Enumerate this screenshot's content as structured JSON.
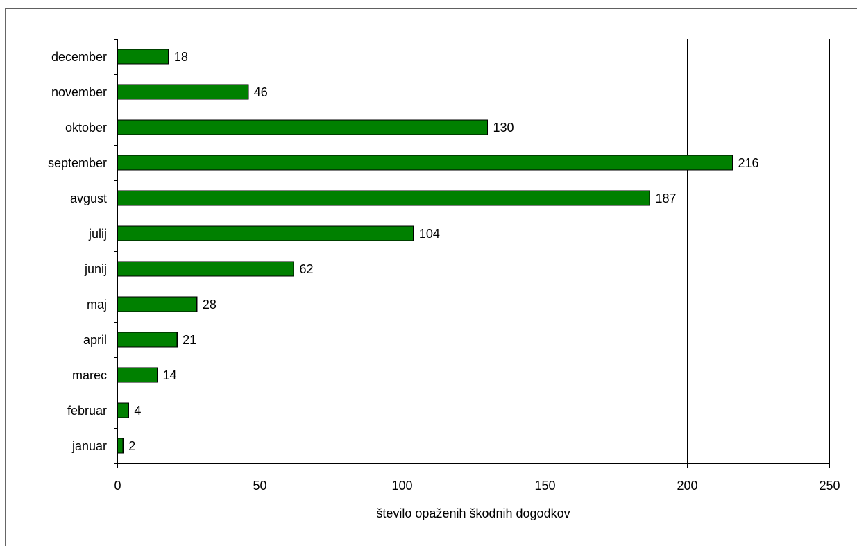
{
  "chart_data": {
    "type": "bar",
    "orientation": "horizontal",
    "categories": [
      "december",
      "november",
      "oktober",
      "september",
      "avgust",
      "julij",
      "junij",
      "maj",
      "april",
      "marec",
      "februar",
      "januar"
    ],
    "values": [
      18,
      46,
      130,
      216,
      187,
      104,
      62,
      28,
      21,
      14,
      4,
      2
    ],
    "data_labels": [
      "18",
      "46",
      "130",
      "216",
      "187",
      "104",
      "62",
      "28",
      "21",
      "14",
      "4",
      "2"
    ],
    "xlabel": "število opaženih škodnih dogodkov",
    "ylabel": "",
    "xlim": [
      0,
      250
    ],
    "x_ticks": [
      0,
      50,
      100,
      150,
      200,
      250
    ],
    "x_tick_labels": [
      "0",
      "50",
      "100",
      "150",
      "200",
      "250"
    ],
    "grid": true,
    "legend": "none",
    "bar_color": "#008000",
    "bar_outline_color": "#000000"
  }
}
